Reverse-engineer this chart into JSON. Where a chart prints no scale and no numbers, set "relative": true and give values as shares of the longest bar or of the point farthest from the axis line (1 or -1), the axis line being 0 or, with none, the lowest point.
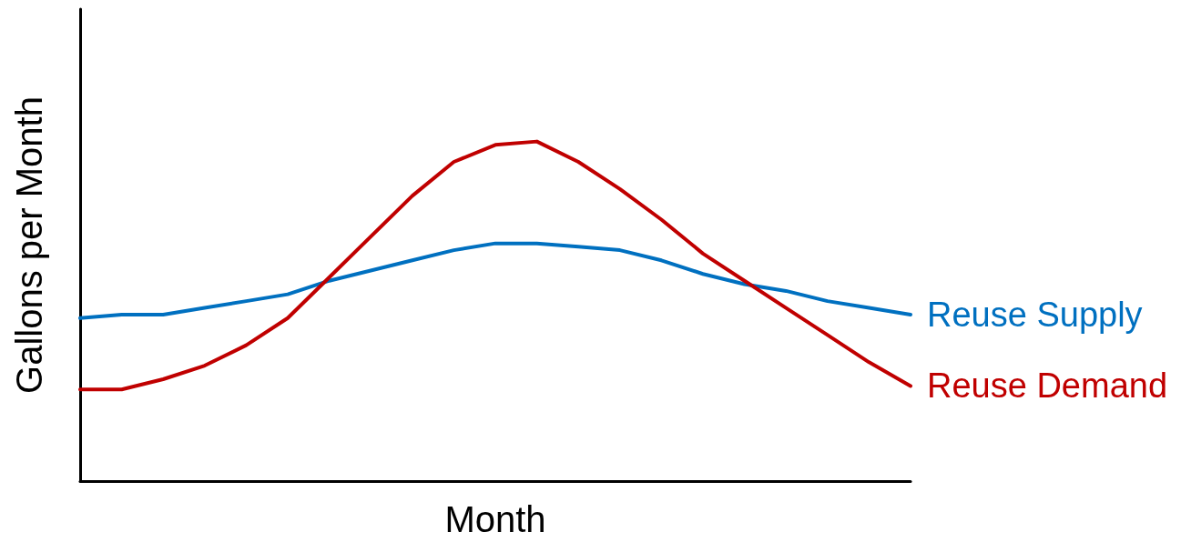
{
  "chart_data": {
    "type": "line",
    "xlabel": "Month",
    "ylabel": "Gallons per Month",
    "relative": true,
    "marker": "none",
    "categories": [
      null,
      null,
      null,
      null,
      null,
      null,
      null,
      null,
      null,
      null,
      null,
      null,
      null,
      null,
      null,
      null,
      null,
      null,
      null,
      null,
      null
    ],
    "series": [
      {
        "name": "Reuse Supply",
        "color": "#0070c0",
        "values": [
          0.48,
          0.49,
          0.49,
          0.51,
          0.53,
          0.55,
          0.59,
          0.62,
          0.65,
          0.68,
          0.7,
          0.7,
          0.69,
          0.68,
          0.65,
          0.61,
          0.58,
          0.56,
          0.53,
          0.51,
          0.49
        ]
      },
      {
        "name": "Reuse Demand",
        "color": "#c00000",
        "values": [
          0.27,
          0.27,
          0.3,
          0.34,
          0.4,
          0.48,
          0.6,
          0.72,
          0.84,
          0.94,
          0.99,
          1.0,
          0.94,
          0.86,
          0.77,
          0.67,
          0.59,
          0.51,
          0.43,
          0.35,
          0.28
        ]
      }
    ]
  }
}
